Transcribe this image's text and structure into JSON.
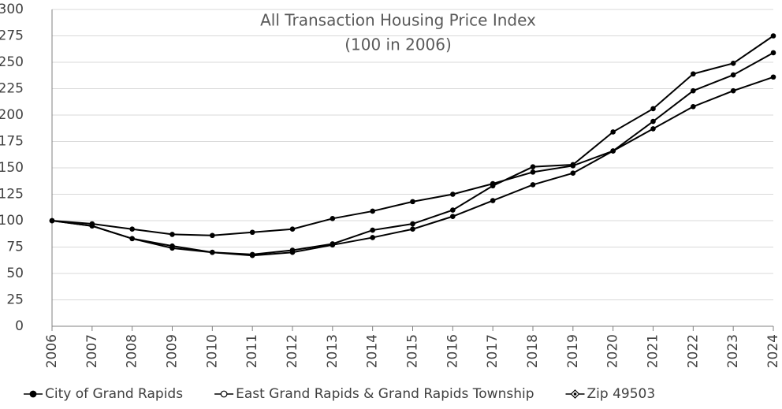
{
  "chart_data": {
    "type": "line",
    "title": "All Transaction Housing Price Index",
    "subtitle": "(100 in 2006)",
    "categories": [
      "2006",
      "2007",
      "2008",
      "2009",
      "2010",
      "2011",
      "2012",
      "2013",
      "2014",
      "2015",
      "2016",
      "2017",
      "2018",
      "2019",
      "2020",
      "2021",
      "2022",
      "2023",
      "2024"
    ],
    "series": [
      {
        "name": "City of Grand Rapids",
        "color": "#000000",
        "legend_marker": "filled-circle",
        "values": [
          100,
          95,
          83,
          74,
          70,
          67,
          70,
          77,
          84,
          92,
          104,
          119,
          134,
          145,
          166,
          194,
          223,
          238,
          259
        ]
      },
      {
        "name": "East Grand Rapids & Grand Rapids Township",
        "color": "#000000",
        "legend_marker": "open-circle",
        "values": [
          100,
          97,
          92,
          87,
          86,
          89,
          92,
          102,
          109,
          118,
          125,
          135,
          146,
          152,
          166,
          187,
          208,
          223,
          236
        ]
      },
      {
        "name": "Zip 49503",
        "color": "#000000",
        "legend_marker": "diamond",
        "values": [
          100,
          95,
          83,
          76,
          70,
          68,
          72,
          78,
          91,
          97,
          110,
          133,
          151,
          153,
          184,
          206,
          239,
          249,
          275
        ]
      }
    ],
    "ylim": [
      0,
      300
    ],
    "yticks": [
      0,
      25,
      50,
      75,
      100,
      125,
      150,
      175,
      200,
      225,
      250,
      275,
      300
    ],
    "grid": true,
    "legend": "bottom"
  }
}
